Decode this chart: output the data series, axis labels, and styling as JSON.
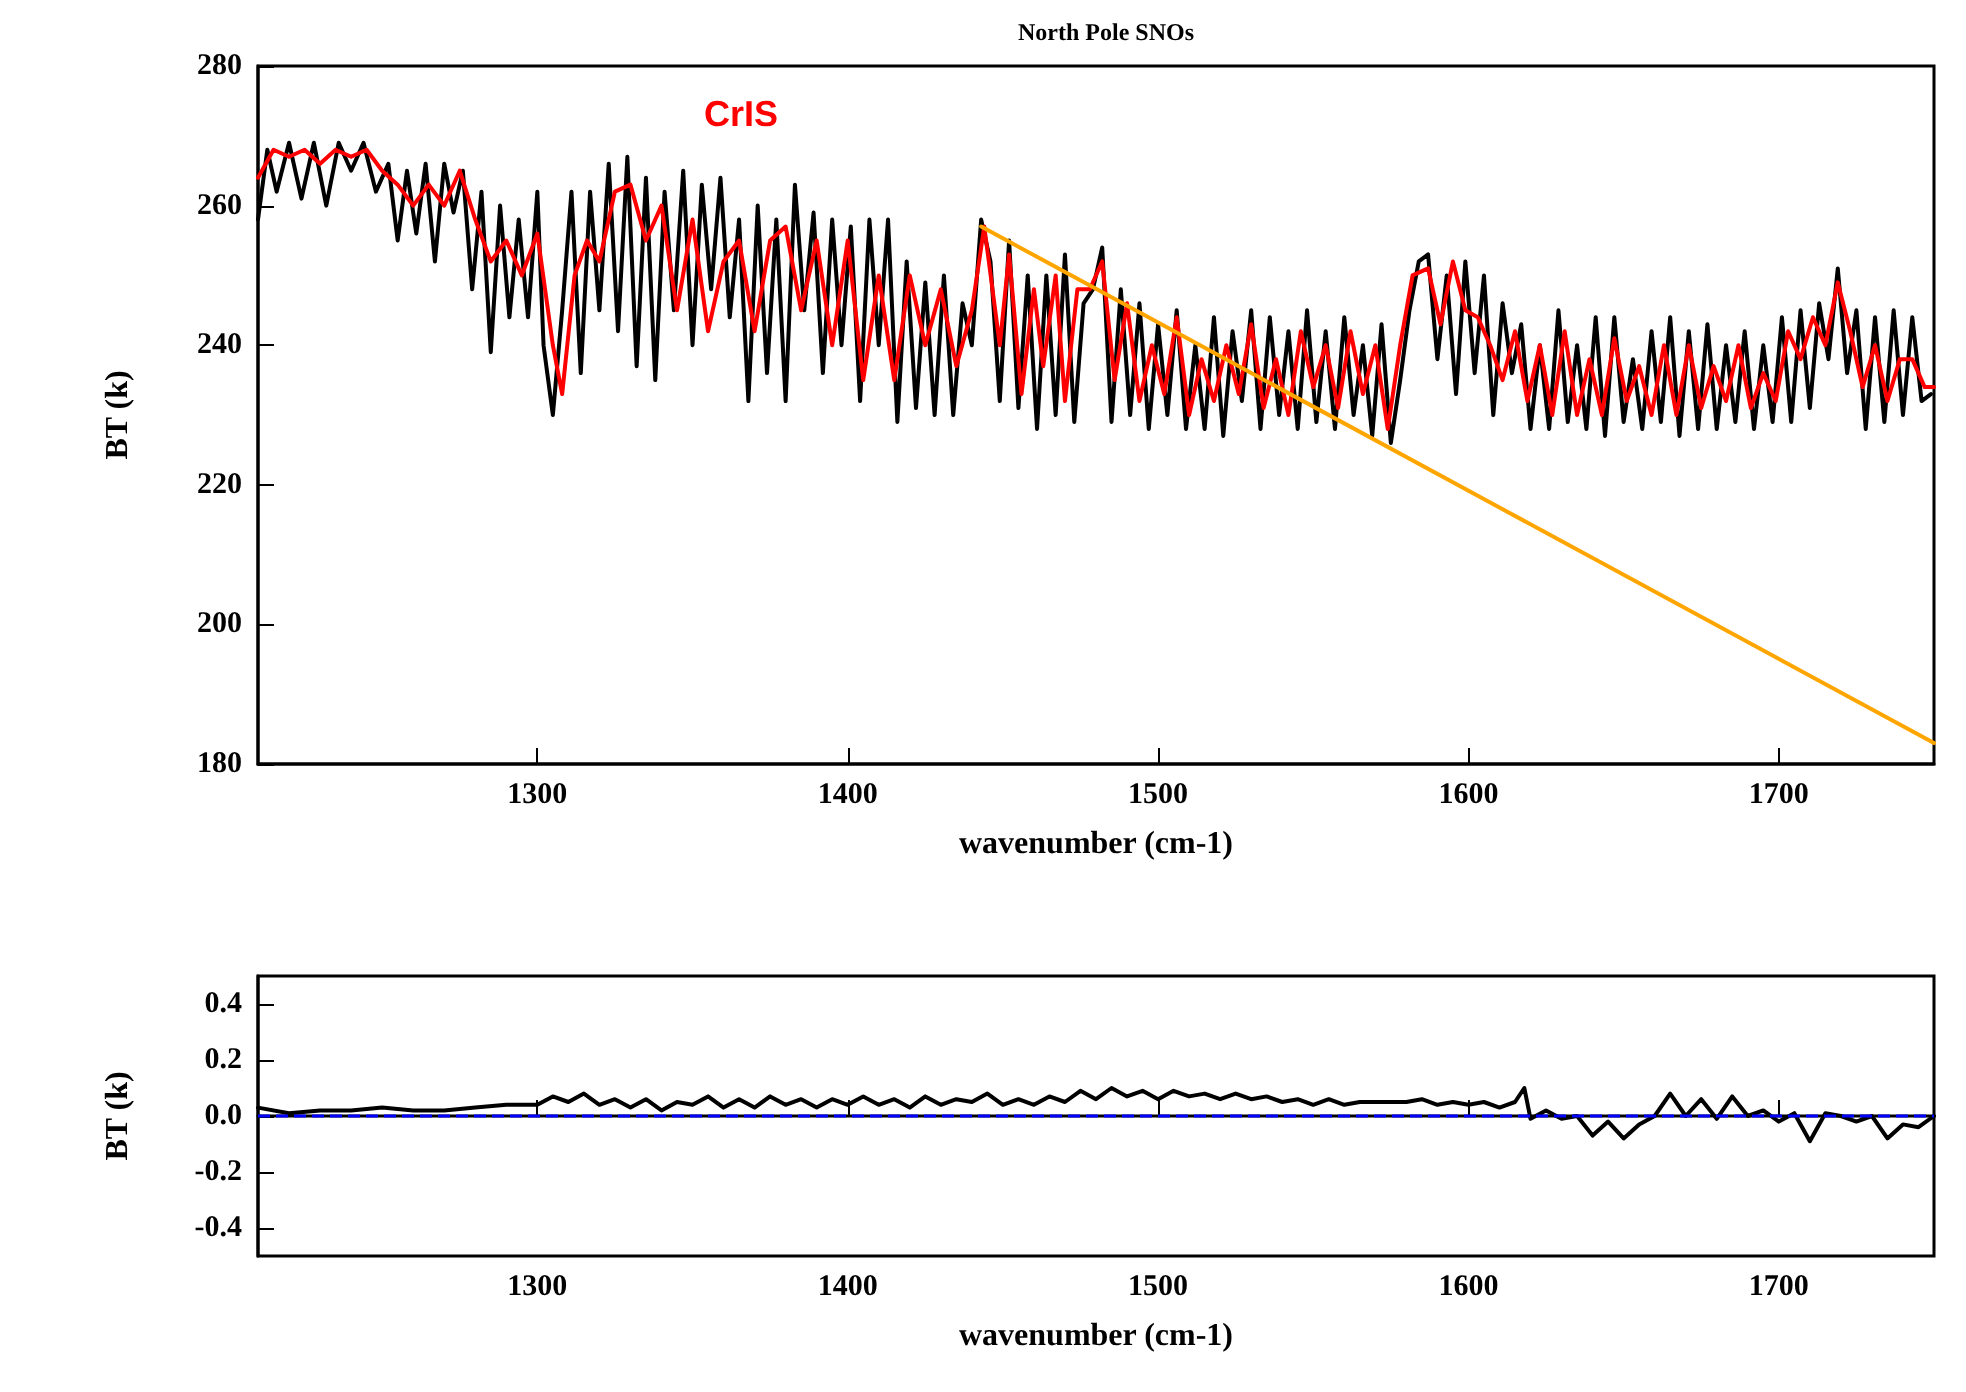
{
  "chart_data": [
    {
      "type": "line",
      "title": "North Pole SNOs",
      "xlabel": "wavenumber (cm-1)",
      "ylabel": "BT (k)",
      "xlim": [
        1210,
        1750
      ],
      "ylim": [
        180,
        280
      ],
      "xticks": [
        1300,
        1400,
        1500,
        1600,
        1700
      ],
      "yticks": [
        180,
        200,
        220,
        240,
        260,
        280
      ],
      "grid": false,
      "legend": false,
      "marker": "none",
      "line_style": "solid",
      "series": [
        {
          "color": "#000000",
          "x": [
            1210,
            1213,
            1216,
            1220,
            1224,
            1228,
            1232,
            1236,
            1240,
            1244,
            1248,
            1252,
            1255,
            1258,
            1261,
            1264,
            1267,
            1270,
            1273,
            1276,
            1279,
            1282,
            1285,
            1288,
            1291,
            1294,
            1297,
            1300,
            1302,
            1305,
            1308,
            1311,
            1314,
            1317,
            1320,
            1323,
            1326,
            1329,
            1332,
            1335,
            1338,
            1341,
            1344,
            1347,
            1350,
            1353,
            1356,
            1359,
            1362,
            1365,
            1368,
            1371,
            1374,
            1377,
            1380,
            1383,
            1386,
            1389,
            1392,
            1395,
            1398,
            1401,
            1404,
            1407,
            1410,
            1413,
            1416,
            1419,
            1422,
            1425,
            1428,
            1431,
            1434,
            1437,
            1440,
            1443,
            1446,
            1449,
            1452,
            1455,
            1458,
            1461,
            1464,
            1467,
            1470,
            1473,
            1476,
            1479,
            1482,
            1485,
            1488,
            1491,
            1494,
            1497,
            1500,
            1503,
            1506,
            1509,
            1512,
            1515,
            1518,
            1521,
            1524,
            1527,
            1530,
            1533,
            1536,
            1539,
            1542,
            1545,
            1548,
            1551,
            1554,
            1557,
            1560,
            1563,
            1566,
            1569,
            1572,
            1575,
            1578,
            1581,
            1584,
            1587,
            1590,
            1593,
            1596,
            1599,
            1602,
            1605,
            1608,
            1611,
            1614,
            1617,
            1620,
            1623,
            1626,
            1629,
            1632,
            1635,
            1638,
            1641,
            1644,
            1647,
            1650,
            1653,
            1656,
            1659,
            1662,
            1665,
            1668,
            1671,
            1674,
            1677,
            1680,
            1683,
            1686,
            1689,
            1692,
            1695,
            1698,
            1701,
            1704,
            1707,
            1710,
            1713,
            1716,
            1719,
            1722,
            1725,
            1728,
            1731,
            1734,
            1737,
            1740,
            1743,
            1746,
            1749
          ],
          "values": [
            258,
            268,
            262,
            269,
            261,
            269,
            260,
            269,
            265,
            269,
            262,
            266,
            255,
            265,
            256,
            266,
            252,
            266,
            259,
            265,
            248,
            262,
            239,
            260,
            244,
            258,
            244,
            262,
            240,
            230,
            245,
            262,
            236,
            262,
            245,
            266,
            242,
            267,
            237,
            264,
            235,
            262,
            245,
            265,
            240,
            263,
            248,
            264,
            244,
            258,
            232,
            260,
            236,
            258,
            232,
            263,
            245,
            259,
            236,
            258,
            240,
            257,
            232,
            258,
            240,
            258,
            229,
            252,
            231,
            249,
            230,
            250,
            230,
            246,
            240,
            258,
            252,
            232,
            255,
            231,
            250,
            228,
            250,
            230,
            253,
            229,
            246,
            248,
            254,
            229,
            248,
            230,
            246,
            228,
            243,
            230,
            245,
            228,
            240,
            228,
            244,
            227,
            242,
            232,
            245,
            228,
            244,
            230,
            242,
            228,
            245,
            229,
            242,
            228,
            244,
            230,
            240,
            227,
            243,
            226,
            235,
            245,
            252,
            253,
            238,
            250,
            233,
            252,
            236,
            250,
            230,
            246,
            236,
            243,
            228,
            240,
            228,
            245,
            229,
            240,
            228,
            244,
            227,
            244,
            229,
            238,
            228,
            242,
            229,
            244,
            227,
            242,
            228,
            243,
            228,
            240,
            229,
            242,
            228,
            240,
            229,
            244,
            229,
            245,
            231,
            246,
            238,
            251,
            236,
            245,
            228,
            244,
            229,
            245,
            230,
            244,
            232,
            233
          ]
        },
        {
          "name": "CrIS",
          "color": "#ff0000",
          "x": [
            1210,
            1215,
            1220,
            1225,
            1230,
            1235,
            1240,
            1245,
            1250,
            1255,
            1260,
            1265,
            1270,
            1275,
            1280,
            1285,
            1290,
            1295,
            1300,
            1305,
            1308,
            1312,
            1316,
            1320,
            1325,
            1330,
            1335,
            1340,
            1345,
            1350,
            1355,
            1360,
            1365,
            1370,
            1375,
            1380,
            1385,
            1390,
            1395,
            1400,
            1405,
            1410,
            1415,
            1420,
            1425,
            1430,
            1435,
            1440,
            1444,
            1449,
            1452,
            1456,
            1460,
            1463,
            1467,
            1470,
            1474,
            1478,
            1482,
            1486,
            1490,
            1494,
            1498,
            1502,
            1506,
            1510,
            1514,
            1518,
            1522,
            1526,
            1530,
            1534,
            1538,
            1542,
            1546,
            1550,
            1554,
            1558,
            1562,
            1566,
            1570,
            1574,
            1578,
            1582,
            1587,
            1591,
            1595,
            1599,
            1603,
            1607,
            1611,
            1615,
            1619,
            1623,
            1627,
            1631,
            1635,
            1639,
            1643,
            1647,
            1651,
            1655,
            1659,
            1663,
            1667,
            1671,
            1675,
            1679,
            1683,
            1687,
            1691,
            1695,
            1699,
            1703,
            1707,
            1711,
            1715,
            1719,
            1723,
            1727,
            1731,
            1735,
            1739,
            1743,
            1747,
            1750
          ],
          "values": [
            264,
            268,
            267,
            268,
            266,
            268,
            267,
            268,
            265,
            263,
            260,
            263,
            260,
            265,
            258,
            252,
            255,
            250,
            256,
            240,
            233,
            250,
            255,
            252,
            262,
            263,
            255,
            260,
            245,
            258,
            242,
            252,
            255,
            242,
            255,
            257,
            245,
            255,
            240,
            255,
            235,
            250,
            235,
            250,
            240,
            248,
            237,
            245,
            257,
            240,
            253,
            233,
            248,
            237,
            250,
            232,
            248,
            248,
            252,
            235,
            246,
            232,
            240,
            233,
            244,
            230,
            238,
            232,
            240,
            233,
            243,
            231,
            238,
            230,
            242,
            234,
            240,
            231,
            242,
            233,
            240,
            228,
            240,
            250,
            251,
            243,
            252,
            245,
            244,
            240,
            235,
            242,
            232,
            240,
            230,
            242,
            230,
            238,
            230,
            241,
            232,
            237,
            230,
            240,
            230,
            240,
            231,
            237,
            232,
            240,
            231,
            236,
            232,
            242,
            238,
            244,
            240,
            249,
            242,
            234,
            240,
            232,
            238,
            238,
            234,
            234
          ]
        },
        {
          "color": "#ffa500",
          "x": [
            1443,
            1750
          ],
          "values": [
            257,
            183
          ]
        }
      ]
    },
    {
      "type": "line",
      "xlabel": "wavenumber (cm-1)",
      "ylabel": "BT (k)",
      "xlim": [
        1210,
        1750
      ],
      "ylim": [
        -0.5,
        0.5
      ],
      "xticks": [
        1300,
        1400,
        1500,
        1600,
        1700
      ],
      "yticks": [
        {
          "value": -0.4,
          "label": "-0.4"
        },
        {
          "value": -0.2,
          "label": "-0.2"
        },
        {
          "value": 0,
          "label": "0.0"
        },
        0.2,
        0.4
      ],
      "grid": false,
      "legend": false,
      "marker": "none",
      "line_style": "solid",
      "ref_lines": [
        {
          "axis": "y",
          "value": 0,
          "color": "#0000ff",
          "line_style": "dashed"
        }
      ],
      "series": [
        {
          "color": "#000000",
          "x": [
            1210,
            1220,
            1230,
            1240,
            1250,
            1260,
            1270,
            1280,
            1290,
            1300,
            1305,
            1310,
            1315,
            1320,
            1325,
            1330,
            1335,
            1340,
            1345,
            1350,
            1355,
            1360,
            1365,
            1370,
            1375,
            1380,
            1385,
            1390,
            1395,
            1400,
            1405,
            1410,
            1415,
            1420,
            1425,
            1430,
            1435,
            1440,
            1445,
            1450,
            1455,
            1460,
            1465,
            1470,
            1475,
            1480,
            1485,
            1490,
            1495,
            1500,
            1505,
            1510,
            1515,
            1520,
            1525,
            1530,
            1535,
            1540,
            1545,
            1550,
            1555,
            1560,
            1565,
            1570,
            1575,
            1580,
            1585,
            1590,
            1595,
            1600,
            1605,
            1610,
            1615,
            1618,
            1620,
            1625,
            1630,
            1635,
            1640,
            1645,
            1650,
            1655,
            1660,
            1665,
            1670,
            1675,
            1680,
            1685,
            1690,
            1695,
            1700,
            1705,
            1710,
            1715,
            1720,
            1725,
            1730,
            1735,
            1740,
            1745,
            1750
          ],
          "values": [
            0.03,
            0.01,
            0.02,
            0.02,
            0.03,
            0.02,
            0.02,
            0.03,
            0.04,
            0.04,
            0.07,
            0.05,
            0.08,
            0.04,
            0.06,
            0.03,
            0.06,
            0.02,
            0.05,
            0.04,
            0.07,
            0.03,
            0.06,
            0.03,
            0.07,
            0.04,
            0.06,
            0.03,
            0.06,
            0.04,
            0.07,
            0.04,
            0.06,
            0.03,
            0.07,
            0.04,
            0.06,
            0.05,
            0.08,
            0.04,
            0.06,
            0.04,
            0.07,
            0.05,
            0.09,
            0.06,
            0.1,
            0.07,
            0.09,
            0.06,
            0.09,
            0.07,
            0.08,
            0.06,
            0.08,
            0.06,
            0.07,
            0.05,
            0.06,
            0.04,
            0.06,
            0.04,
            0.05,
            0.05,
            0.05,
            0.05,
            0.06,
            0.04,
            0.05,
            0.04,
            0.05,
            0.03,
            0.05,
            0.1,
            -0.01,
            0.02,
            -0.01,
            0,
            -0.07,
            -0.02,
            -0.08,
            -0.03,
            0,
            0.08,
            0,
            0.06,
            -0.01,
            0.07,
            0,
            0.02,
            -0.02,
            0.01,
            -0.09,
            0.01,
            0,
            -0.02,
            0,
            -0.08,
            -0.03,
            -0.04,
            0
          ]
        }
      ]
    }
  ]
}
